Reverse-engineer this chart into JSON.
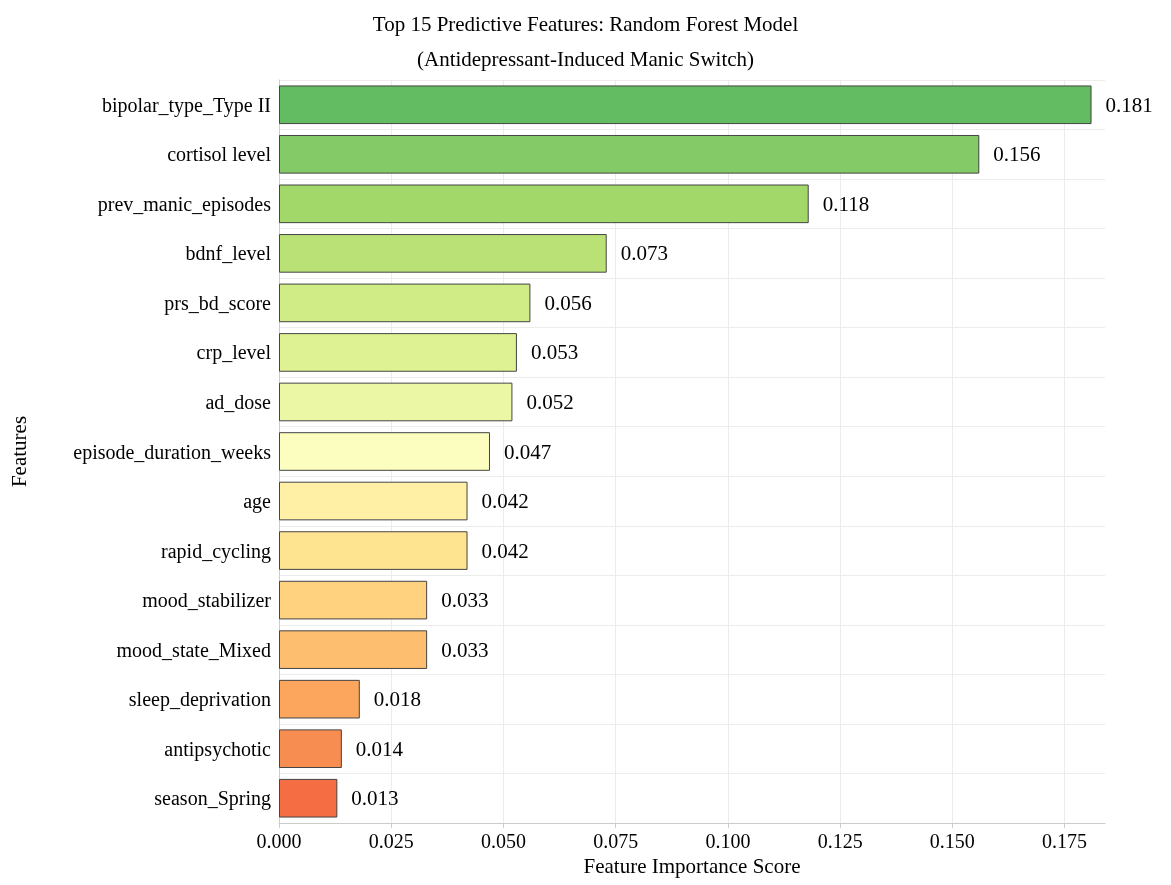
{
  "chart_data": {
    "type": "bar",
    "orientation": "horizontal",
    "title": "Top 15 Predictive Features: Random Forest Model",
    "subtitle": "(Antidepressant-Induced Manic Switch)",
    "xlabel": "Feature Importance Score",
    "ylabel": "Features",
    "categories": [
      "bipolar_type_Type II",
      "cortisol level",
      "prev_manic_episodes",
      "bdnf_level",
      "prs_bd_score",
      "crp_level",
      "ad_dose",
      "episode_duration_weeks",
      "age",
      "rapid_cycling",
      "mood_stabilizer",
      "mood_state_Mixed",
      "sleep_deprivation",
      "antipsychotic",
      "season_Spring"
    ],
    "values": [
      0.181,
      0.156,
      0.118,
      0.073,
      0.056,
      0.053,
      0.052,
      0.047,
      0.042,
      0.042,
      0.033,
      0.033,
      0.018,
      0.014,
      0.013
    ],
    "colors": [
      "#63bc62",
      "#84ca66",
      "#a2d76a",
      "#b9e176",
      "#d0ec86",
      "#dff293",
      "#ecf7a5",
      "#fcfebf",
      "#fff0a6",
      "#fee491",
      "#fed27f",
      "#fdbe6f",
      "#fca55d",
      "#f88d51",
      "#f46d43"
    ],
    "xlim": [
      0,
      0.184
    ],
    "xticks": [
      {
        "value": 0,
        "label": "0.000"
      },
      {
        "value": 0.025,
        "label": "0.025"
      },
      {
        "value": 0.05,
        "label": "0.050"
      },
      {
        "value": 0.075,
        "label": "0.075"
      },
      {
        "value": 0.1,
        "label": "0.100"
      },
      {
        "value": 0.125,
        "label": "0.125"
      },
      {
        "value": 0.15,
        "label": "0.150"
      },
      {
        "value": 0.175,
        "label": "0.175"
      }
    ],
    "data_labels": true,
    "grid": true
  }
}
